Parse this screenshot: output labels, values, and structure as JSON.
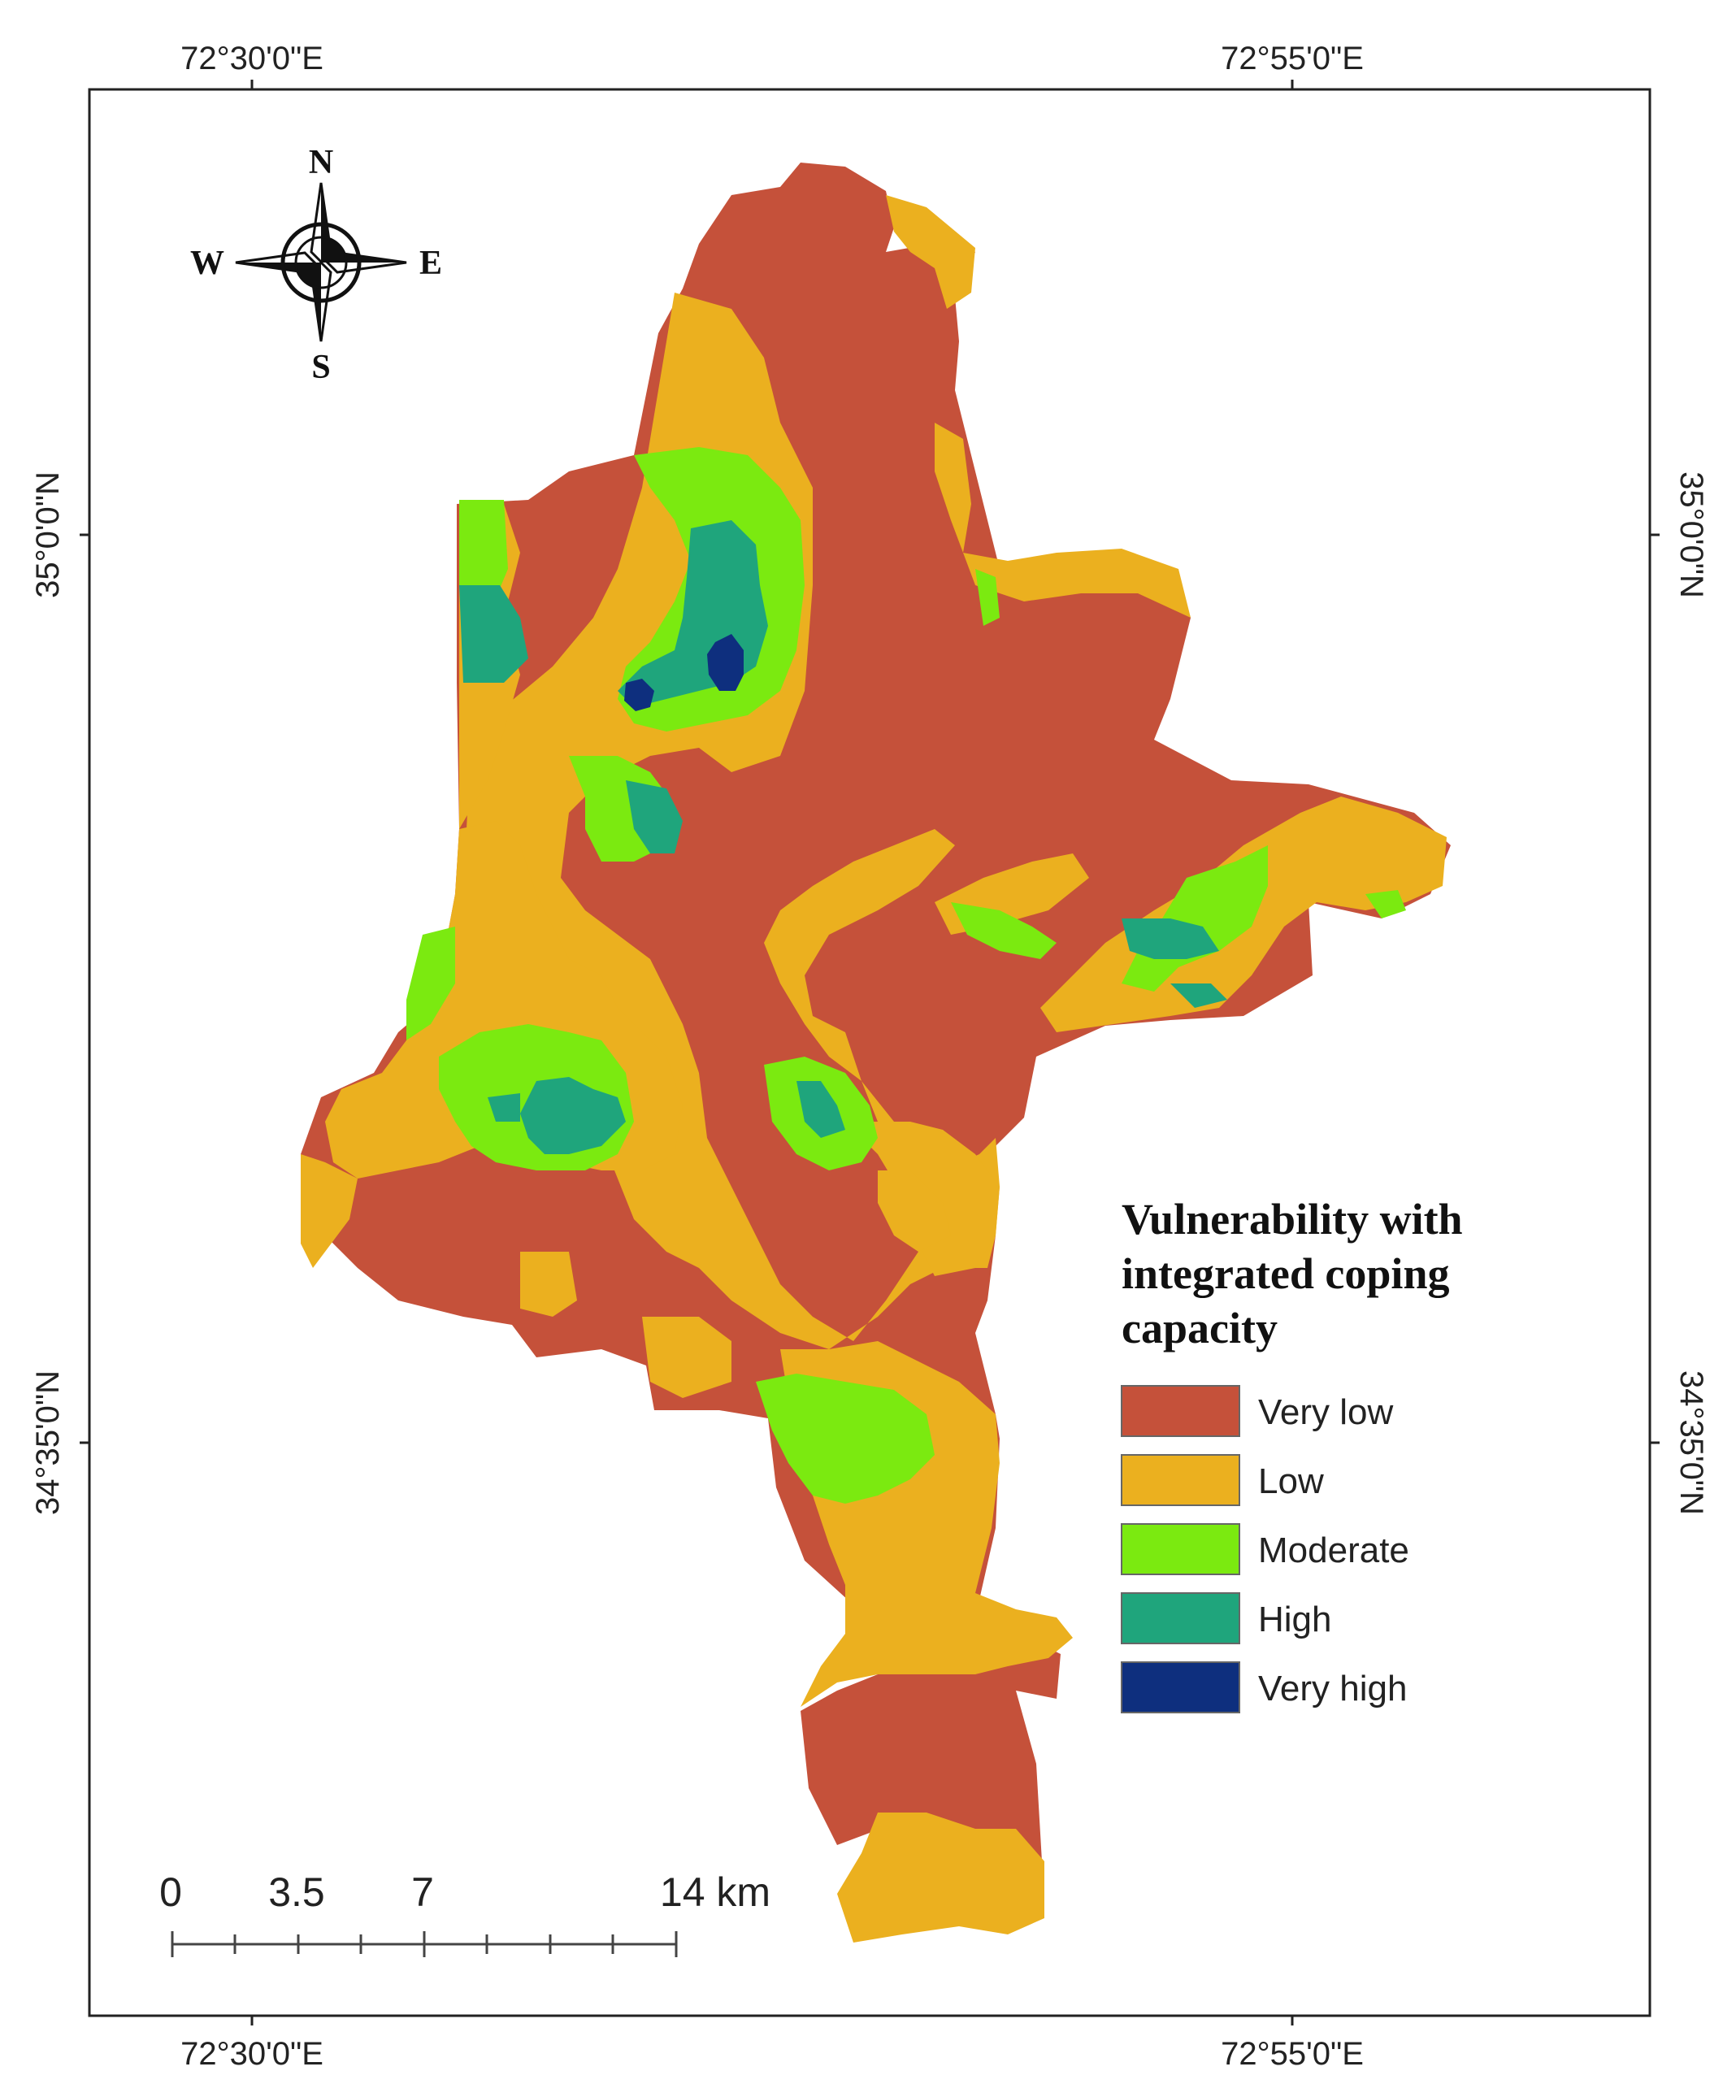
{
  "graticule": {
    "top_lon_left": "72°30'0\"E",
    "top_lon_right": "72°55'0\"E",
    "bottom_lon_left": "72°30'0\"E",
    "bottom_lon_right": "72°55'0\"E",
    "left_lat_top": "35°0'0\"N",
    "left_lat_bottom": "34°35'0\"N",
    "right_lat_top": "35°0'0\"N",
    "right_lat_bottom": "34°35'0\"N"
  },
  "compass": {
    "n": "N",
    "s": "S",
    "e": "E",
    "w": "W"
  },
  "legend": {
    "title_line1": "Vulnerability with",
    "title_line2": "integrated coping",
    "title_line3": "capacity",
    "items": [
      {
        "label": "Very low",
        "color": "#c5513a"
      },
      {
        "label": "Low",
        "color": "#ebb01f"
      },
      {
        "label": "Moderate",
        "color": "#7bea10"
      },
      {
        "label": "High",
        "color": "#1fa57c"
      },
      {
        "label": "Very high",
        "color": "#0e2f7e"
      }
    ]
  },
  "scale_bar": {
    "l0": "0",
    "l1": "3.5",
    "l2": "7",
    "l3": "14 km"
  }
}
